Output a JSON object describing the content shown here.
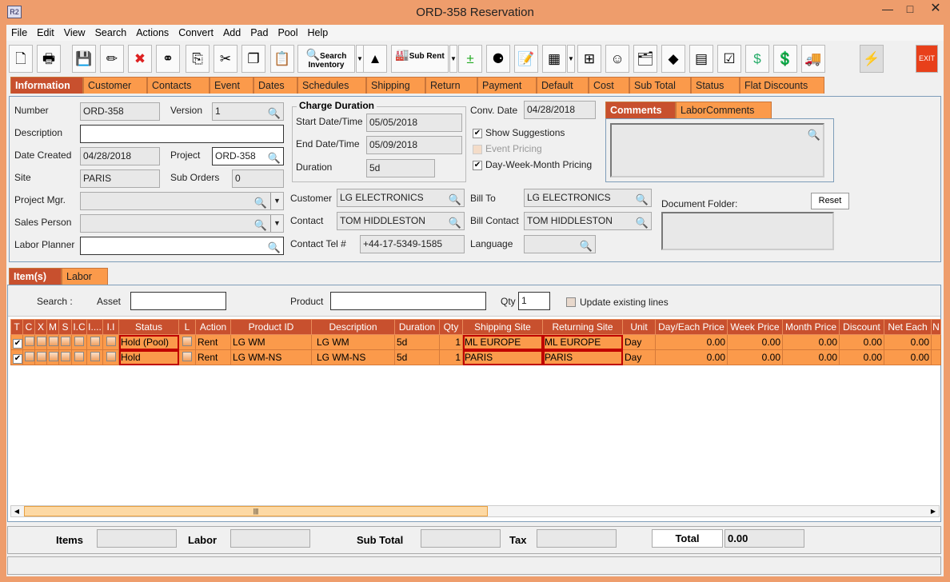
{
  "window": {
    "title": "ORD-358 Reservation",
    "logo": "R2",
    "controls": [
      "minimize",
      "maximize",
      "close"
    ]
  },
  "menu": [
    "File",
    "Edit",
    "View",
    "Search",
    "Actions",
    "Convert",
    "Add",
    "Pad",
    "Pool",
    "Help"
  ],
  "toolbar": {
    "icons": [
      "new-document",
      "print",
      "save",
      "edit-pencil",
      "delete-x",
      "binoculars",
      "copy-to",
      "cut-scissors",
      "copy",
      "paste",
      "search-inventory",
      "shapes",
      "sub-rent",
      "add-remove",
      "balls",
      "notepad",
      "gray-notepad",
      "org-chart",
      "smiley",
      "folder-clock",
      "eraser",
      "stacked-boxes",
      "checklist",
      "money-arrow",
      "money-stack",
      "truck",
      "lightning",
      "exit"
    ],
    "search_inventory": "Search Inventory",
    "sub_rent": "Sub Rent",
    "exit": "EXIT"
  },
  "tabs": [
    "Information",
    "Customer",
    "Contacts",
    "Event",
    "Dates",
    "Schedules",
    "Shipping",
    "Return",
    "Payment",
    "Default",
    "Cost",
    "Sub Total",
    "Status",
    "Flat Discounts"
  ],
  "info": {
    "number_label": "Number",
    "number": "ORD-358",
    "version_label": "Version",
    "version": "1",
    "description_label": "Description",
    "description": "",
    "date_created_label": "Date Created",
    "date_created": "04/28/2018",
    "project_label": "Project",
    "project": "ORD-358",
    "site_label": "Site",
    "site": "PARIS",
    "sub_orders_label": "Sub Orders",
    "sub_orders": "0",
    "project_mgr_label": "Project Mgr.",
    "project_mgr": "",
    "sales_person_label": "Sales Person",
    "sales_person": "",
    "labor_planner_label": "Labor Planner",
    "labor_planner": "",
    "charge_duration_title": "Charge Duration",
    "start_label": "Start Date/Time",
    "start": "05/05/2018",
    "end_label": "End Date/Time",
    "end": "05/09/2018",
    "duration_label": "Duration",
    "duration": "5d",
    "conv_date_label": "Conv. Date",
    "conv_date": "04/28/2018",
    "show_suggestions": "Show Suggestions",
    "show_suggestions_checked": true,
    "event_pricing": "Event Pricing",
    "event_pricing_checked": false,
    "dwm_pricing": "Day-Week-Month Pricing",
    "dwm_pricing_checked": true,
    "customer_label": "Customer",
    "customer": "LG ELECTRONICS",
    "contact_label": "Contact",
    "contact": "TOM HIDDLESTON",
    "contact_tel_label": "Contact Tel #",
    "contact_tel": "+44-17-5349-1585",
    "bill_to_label": "Bill To",
    "bill_to": "LG ELECTRONICS",
    "bill_contact_label": "Bill Contact",
    "bill_contact": "TOM HIDDLESTON",
    "language_label": "Language",
    "language": "",
    "comment_tabs": [
      "Comments",
      "LaborComments"
    ],
    "comments": "",
    "document_folder_label": "Document Folder:",
    "reset": "Reset"
  },
  "subtabs": [
    "Item(s)",
    "Labor"
  ],
  "search": {
    "search_label": "Search :",
    "asset_label": "Asset",
    "asset": "",
    "product_label": "Product",
    "product": "",
    "qty_label": "Qty",
    "qty": "1",
    "update_label": "Update existing lines",
    "update_checked": false
  },
  "table": {
    "columns": [
      "T",
      "C",
      "X",
      "M",
      "S",
      "I.C",
      "I....",
      "I.I",
      "Status",
      "L",
      "Action",
      "Product ID",
      "Description",
      "Duration",
      "Qty",
      "Shipping Site",
      "Returning Site",
      "Unit",
      "Day/Each Price",
      "Week Price",
      "Month Price",
      "Discount",
      "Net Each",
      "N"
    ],
    "rows": [
      {
        "t": true,
        "status": "Hold (Pool)",
        "action": "Rent",
        "product_id": "LG WM",
        "description": "LG WM",
        "duration": "5d",
        "qty": "1",
        "shipping_site": "ML EUROPE",
        "returning_site": "ML EUROPE",
        "unit": "Day",
        "day_price": "0.00",
        "week_price": "0.00",
        "month_price": "0.00",
        "discount": "0.00",
        "net_each": "0.00"
      },
      {
        "t": true,
        "status": "Hold",
        "action": "Rent",
        "product_id": "LG WM-NS",
        "description": "LG WM-NS",
        "duration": "5d",
        "qty": "1",
        "shipping_site": "PARIS",
        "returning_site": "PARIS",
        "unit": "Day",
        "day_price": "0.00",
        "week_price": "0.00",
        "month_price": "0.00",
        "discount": "0.00",
        "net_each": "0.00"
      }
    ]
  },
  "totals": {
    "items_label": "Items",
    "items": "",
    "labor_label": "Labor",
    "labor": "",
    "sub_total_label": "Sub Total",
    "sub_total": "",
    "tax_label": "Tax",
    "tax": "",
    "total_label": "Total",
    "total": "0.00"
  }
}
